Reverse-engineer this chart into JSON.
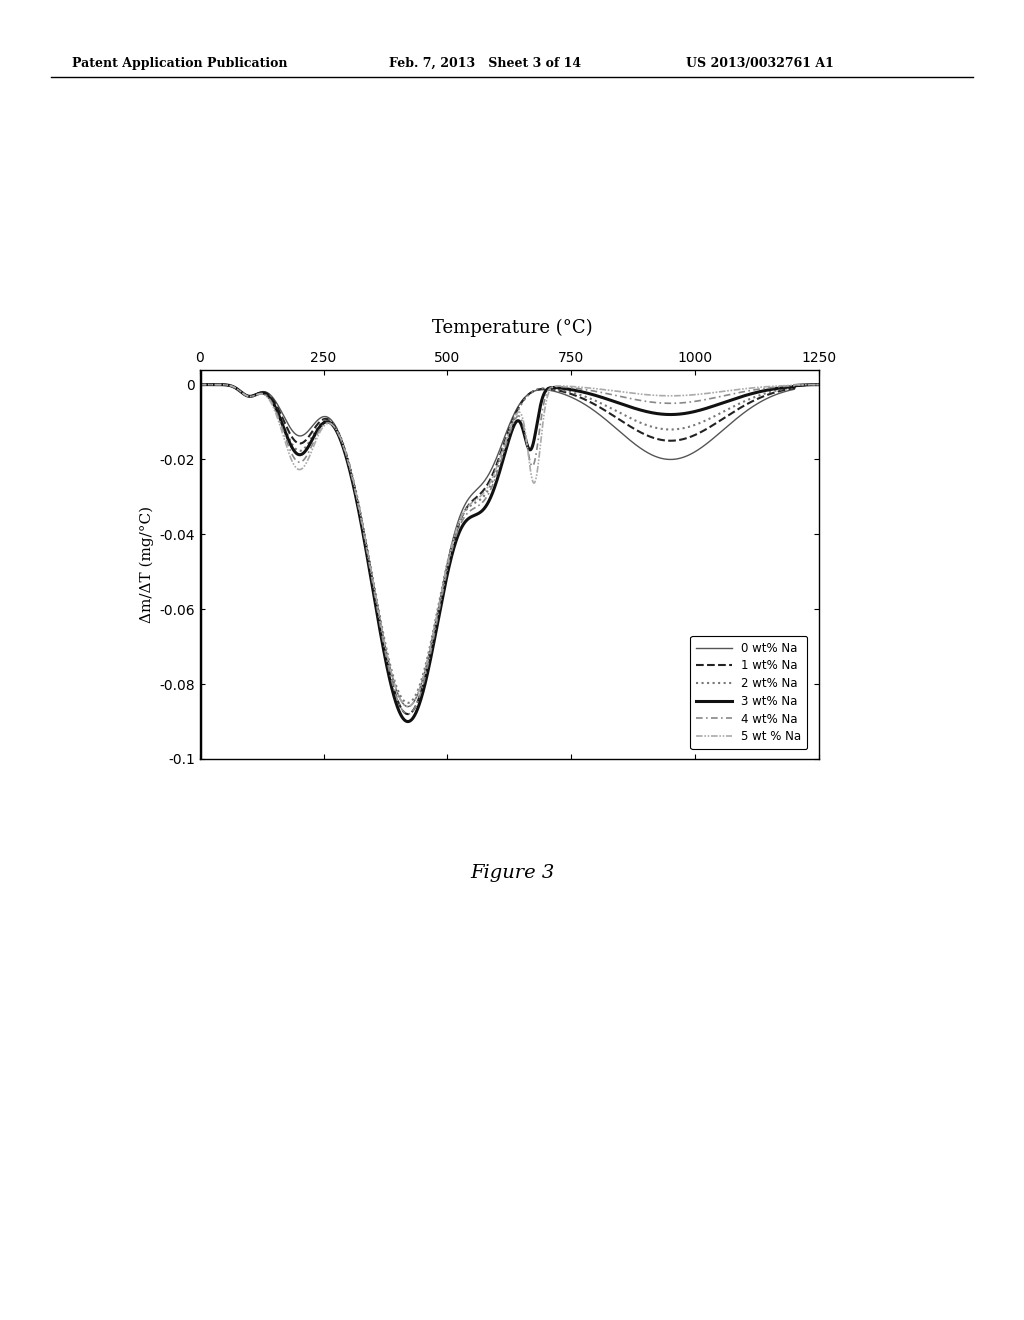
{
  "title": "Temperature (°C)",
  "ylabel": "Δm/ΔT (mg/°C)",
  "xlim": [
    0,
    1250
  ],
  "ylim": [
    -0.1,
    0.004
  ],
  "xticks": [
    0,
    250,
    500,
    750,
    1000,
    1250
  ],
  "yticks": [
    0,
    -0.02,
    -0.04,
    -0.06,
    -0.08,
    -0.1
  ],
  "header_left": "Patent Application Publication",
  "header_center": "Feb. 7, 2013   Sheet 3 of 14",
  "header_right": "US 2013/0032761 A1",
  "figure_caption": "Figure 3",
  "legend_labels": [
    "0 wt% Na",
    "1 wt% Na",
    "2 wt% Na",
    "3 wt% Na",
    "4 wt% Na",
    "5 wt % Na"
  ],
  "background_color": "#ffffff"
}
